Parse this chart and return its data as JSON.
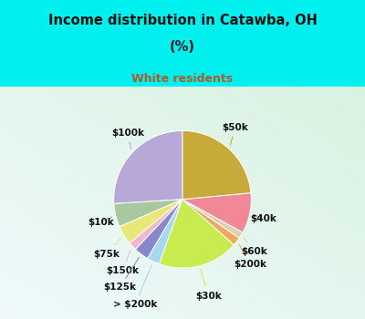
{
  "title_line1": "Income distribution in Catawba, OH",
  "title_line2": "(%)",
  "subtitle": "White residents",
  "title_color": "#111111",
  "subtitle_color": "#b05a2a",
  "bg_cyan": "#00f0f0",
  "labels": [
    "$100k",
    "$10k",
    "$75k",
    "$150k",
    "$125k",
    "> $200k",
    "$30k",
    "$200k",
    "$60k",
    "$40k",
    "$50k"
  ],
  "values": [
    26.0,
    5.5,
    4.5,
    2.0,
    3.5,
    3.0,
    19.0,
    2.0,
    1.5,
    9.5,
    23.5
  ],
  "colors": [
    "#b8a8d8",
    "#a8c8a0",
    "#e8e878",
    "#f0b8c8",
    "#8888cc",
    "#a8d8f0",
    "#c8ec50",
    "#f0a860",
    "#e0d0b0",
    "#f08898",
    "#c8aa3a"
  ],
  "label_fontsize": 7.5,
  "startangle": 90,
  "label_color": "#111111"
}
